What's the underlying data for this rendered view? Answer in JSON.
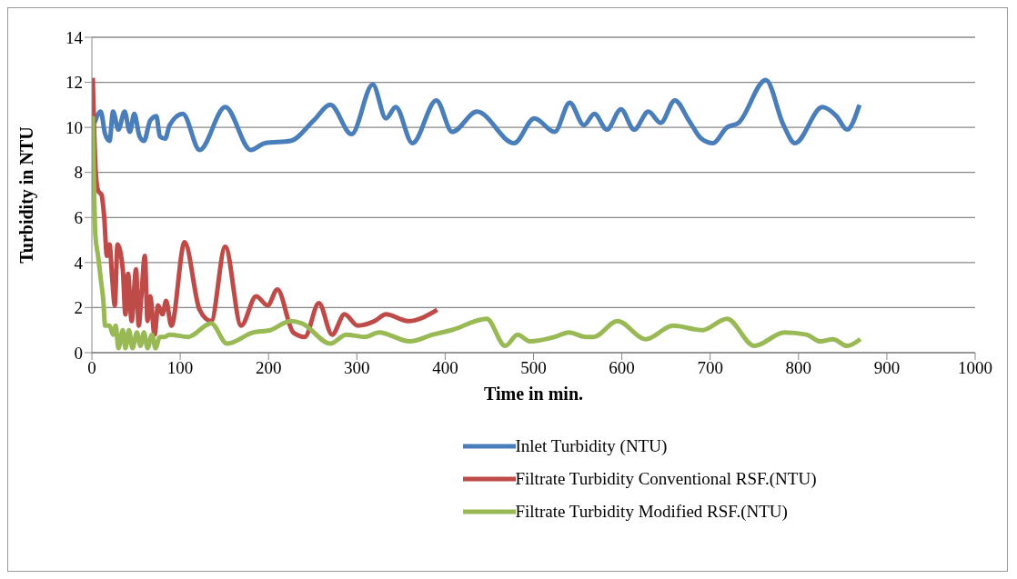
{
  "chart_data": {
    "type": "line",
    "xlabel": "Time in min.",
    "ylabel": "Turbidity in NTU",
    "xlim": [
      0,
      1000
    ],
    "xticks": [
      0,
      100,
      200,
      300,
      400,
      500,
      600,
      700,
      800,
      900,
      1000
    ],
    "ylim": [
      0,
      14
    ],
    "yticks": [
      0,
      2,
      4,
      6,
      8,
      10,
      12,
      14
    ],
    "grid": "y",
    "legend": "bottom",
    "marker": "none",
    "line_style": "solid",
    "series": [
      {
        "name": "Inlet Turbidity (NTU)",
        "color": "#4a7ebb",
        "x": [
          3,
          10,
          15,
          20,
          24,
          30,
          37,
          43,
          48,
          54,
          59,
          66,
          73,
          77,
          83,
          88,
          103,
          122,
          151,
          180,
          196,
          225,
          251,
          270,
          294,
          318,
          333,
          344,
          363,
          390,
          408,
          436,
          478,
          501,
          524,
          541,
          557,
          569,
          583,
          599,
          614,
          630,
          644,
          660,
          676,
          690,
          703,
          719,
          732,
          763,
          783,
          796,
          827,
          843,
          855,
          869
        ],
        "values": [
          10.2,
          10.7,
          9.7,
          9.4,
          10.7,
          9.9,
          10.7,
          9.8,
          10.6,
          9.6,
          9.4,
          10.3,
          10.5,
          9.6,
          9.5,
          10.1,
          10.6,
          9.0,
          10.9,
          9.0,
          9.3,
          9.4,
          10.3,
          11.0,
          9.7,
          11.9,
          10.4,
          10.9,
          9.3,
          11.2,
          9.8,
          10.7,
          9.3,
          10.4,
          9.8,
          11.1,
          10.1,
          10.6,
          9.9,
          10.8,
          9.9,
          10.7,
          10.2,
          11.2,
          10.3,
          9.5,
          9.3,
          10.0,
          10.2,
          12.1,
          10.1,
          9.3,
          10.9,
          10.5,
          9.9,
          11.0
        ]
      },
      {
        "name": "Filtrate Turbidity Conventional RSF.(NTU)",
        "color": "#be4b48",
        "x": [
          1,
          4,
          7,
          11,
          14,
          17,
          20,
          23,
          26,
          29,
          35,
          38,
          41,
          45,
          50,
          53,
          56,
          60,
          63,
          66,
          71,
          75,
          80,
          84,
          90,
          105,
          122,
          135,
          151,
          169,
          186,
          199,
          210,
          228,
          241,
          257,
          272,
          286,
          301,
          320,
          333,
          358,
          391
        ],
        "values": [
          12.2,
          8.3,
          7.2,
          7.0,
          6.0,
          4.3,
          4.8,
          3.3,
          2.1,
          4.8,
          3.7,
          1.7,
          3.5,
          1.4,
          3.7,
          1.2,
          2.5,
          4.3,
          1.4,
          2.5,
          0.8,
          2.1,
          1.7,
          2.3,
          1.2,
          4.9,
          1.9,
          1.4,
          4.7,
          1.2,
          2.5,
          2.1,
          2.8,
          0.9,
          0.7,
          2.2,
          0.8,
          1.7,
          1.2,
          1.4,
          1.7,
          1.4,
          1.9
        ]
      },
      {
        "name": "Filtrate Turbidity Modified RSF.(NTU)",
        "color": "#98b954",
        "x": [
          1,
          4,
          7,
          10,
          13,
          15,
          20,
          24,
          27,
          30,
          35,
          38,
          42,
          46,
          51,
          55,
          59,
          63,
          68,
          72,
          77,
          82,
          88,
          109,
          135,
          153,
          183,
          202,
          225,
          238,
          270,
          288,
          309,
          325,
          360,
          386,
          407,
          447,
          468,
          482,
          496,
          524,
          540,
          559,
          568,
          595,
          627,
          658,
          691,
          719,
          750,
          784,
          809,
          825,
          839,
          855,
          870
        ],
        "values": [
          10.5,
          5.2,
          4.3,
          3.3,
          2.3,
          1.2,
          1.2,
          0.8,
          1.2,
          0.2,
          1.0,
          0.2,
          1.0,
          0.2,
          0.9,
          0.3,
          0.9,
          0.2,
          0.8,
          0.2,
          0.7,
          0.7,
          0.8,
          0.7,
          1.3,
          0.4,
          0.9,
          1.0,
          1.4,
          1.3,
          0.4,
          0.8,
          0.7,
          0.9,
          0.5,
          0.8,
          1.0,
          1.5,
          0.3,
          0.8,
          0.5,
          0.7,
          0.9,
          0.7,
          0.7,
          1.4,
          0.6,
          1.2,
          1.0,
          1.5,
          0.3,
          0.9,
          0.8,
          0.5,
          0.6,
          0.3,
          0.6
        ]
      }
    ]
  }
}
